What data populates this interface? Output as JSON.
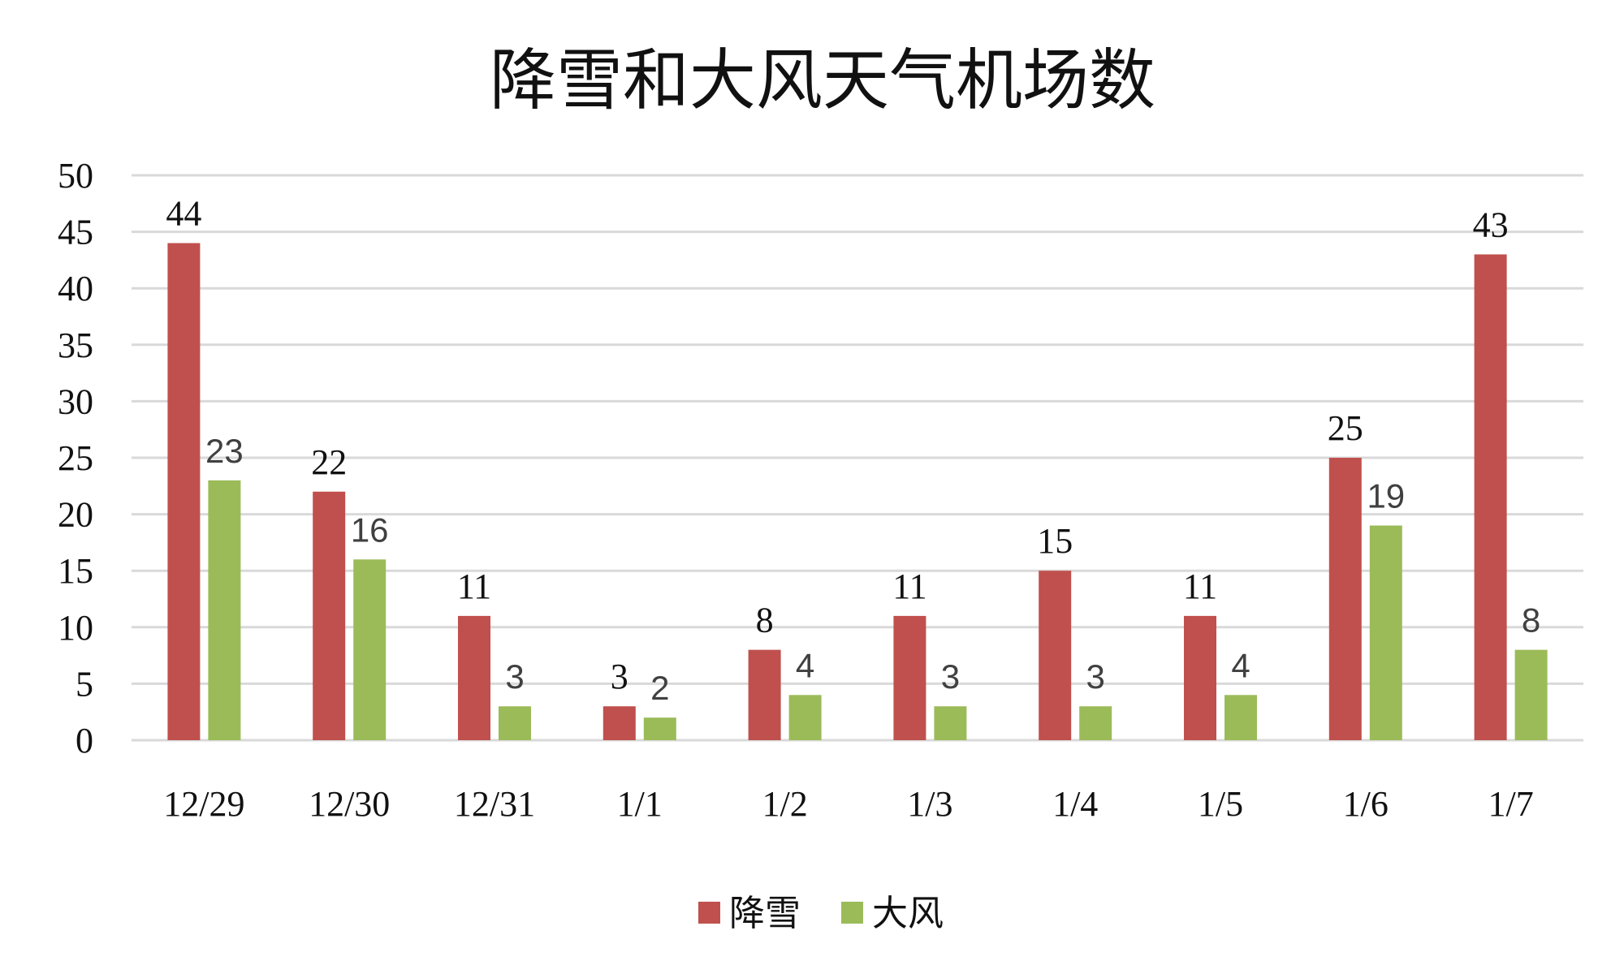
{
  "chart_data": {
    "type": "bar",
    "title": "降雪和大风天气机场数",
    "categories": [
      "12/29",
      "12/30",
      "12/31",
      "1/1",
      "1/2",
      "1/3",
      "1/4",
      "1/5",
      "1/6",
      "1/7"
    ],
    "series": [
      {
        "name": "降雪",
        "color": "#C0504D",
        "values": [
          44,
          22,
          11,
          3,
          8,
          11,
          15,
          11,
          25,
          43
        ]
      },
      {
        "name": "大风",
        "color": "#9BBB59",
        "values": [
          23,
          16,
          3,
          2,
          4,
          3,
          3,
          4,
          19,
          8
        ]
      }
    ],
    "ylim": [
      0,
      50
    ],
    "yticks": [
      0,
      5,
      10,
      15,
      20,
      25,
      30,
      35,
      40,
      45,
      50
    ],
    "grid": true,
    "gridColor": "#D9D9D9",
    "legend_position": "bottom"
  }
}
